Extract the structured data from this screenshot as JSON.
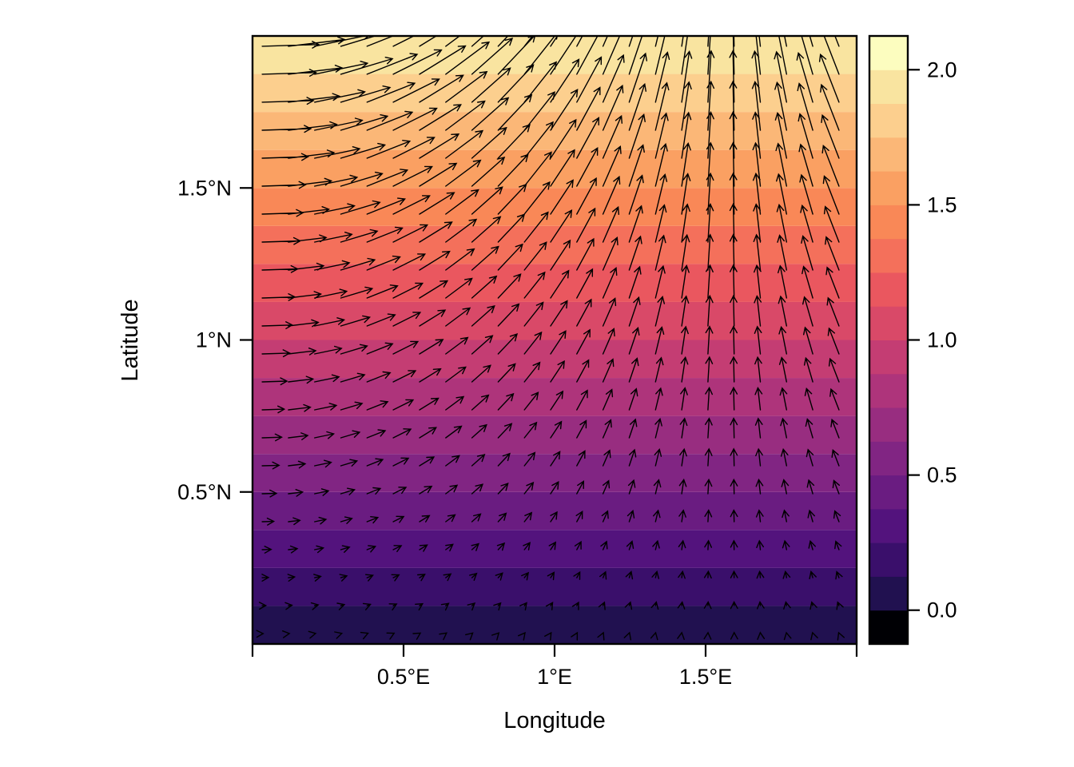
{
  "chart_data": {
    "type": "filled-contour+quiver",
    "title": "",
    "xlabel": "Longitude",
    "ylabel": "Latitude",
    "xlim": [
      0,
      2
    ],
    "ylim": [
      0,
      2
    ],
    "x_axis": {
      "tick_values": [
        0,
        0.5,
        1.0,
        1.5,
        2
      ],
      "tick_labels": [
        "",
        "0.5°E",
        "1°E",
        "1.5°E",
        ""
      ]
    },
    "y_axis": {
      "tick_values": [
        0.5,
        1.0,
        1.5
      ],
      "tick_labels": [
        "0.5°N",
        "1°N",
        "1.5°N"
      ]
    },
    "field": {
      "color_value": "z = y (flow speed, increases with latitude)",
      "u": "y*cos(x)",
      "v": "y*sin(x)",
      "angle_radians_equals_x": true,
      "grid_cols": 23,
      "grid_rows": 22,
      "x_first": 0.032,
      "x_step": 0.0868,
      "y_first": 0.034,
      "y_step": 0.092
    },
    "levels": {
      "min": -0.125,
      "max": 2.125,
      "step": 0.125,
      "n_bands": 18
    },
    "palette": [
      "#000004",
      "#211150",
      "#3A0F6B",
      "#53137D",
      "#6A1C81",
      "#812583",
      "#982D80",
      "#AE347B",
      "#C43D73",
      "#D94968",
      "#EA575F",
      "#F4705B",
      "#F98857",
      "#FAA062",
      "#FBB777",
      "#FCCF8E",
      "#F9E4A0",
      "#FCFDBF"
    ],
    "colorbar": {
      "tick_values": [
        0.0,
        0.5,
        1.0,
        1.5,
        2.0
      ],
      "tick_labels": [
        "0.0",
        "0.5",
        "1.0",
        "1.5",
        "2.0"
      ],
      "position": "right"
    },
    "arrow_color": "#000000",
    "grid_lines": false,
    "legend": "colorbar-right"
  }
}
